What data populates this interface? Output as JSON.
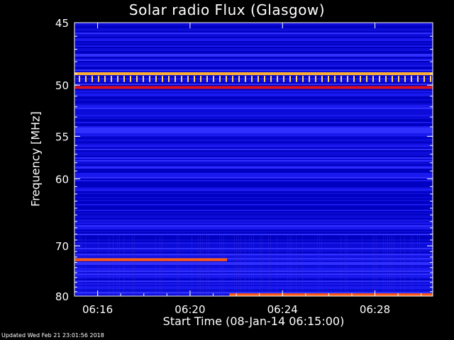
{
  "chart_data": {
    "type": "heatmap",
    "title": "Solar radio Flux (Glasgow)",
    "xlabel": "Start Time (08-Jan-14 06:15:00)",
    "ylabel": "Frequency [MHz]",
    "x_axis": {
      "unit": "minutes after 06:15:00",
      "range": [
        0,
        15.5
      ],
      "ticks": [
        {
          "value": 1,
          "label": "06:16"
        },
        {
          "value": 5,
          "label": "06:20"
        },
        {
          "value": 9,
          "label": "06:24"
        },
        {
          "value": 13,
          "label": "06:28"
        }
      ]
    },
    "y_axis": {
      "unit": "MHz",
      "scale": "reciprocal",
      "range": [
        45,
        80
      ],
      "inverted": true,
      "ticks": [
        45,
        50,
        55,
        60,
        70,
        80
      ]
    },
    "colormap": [
      "#0000c8",
      "#1e1eff",
      "#6a28e0",
      "#d01020",
      "#ff3a10",
      "#ffb030"
    ],
    "background_intensity": "low (blue)",
    "features": [
      {
        "kind": "interference_band",
        "freq_mhz": 49.0,
        "x_start": 0,
        "x_end": 15.5,
        "color": "#ffb030"
      },
      {
        "kind": "interference_band",
        "freq_mhz": 50.2,
        "x_start": 0,
        "x_end": 15.5,
        "color": "#e0101a"
      },
      {
        "kind": "interference_band",
        "freq_mhz": 72.5,
        "x_start": 0,
        "x_end": 6.6,
        "color": "#ff5a10"
      },
      {
        "kind": "interference_band",
        "freq_mhz": 79.7,
        "x_start": 6.7,
        "x_end": 15.5,
        "color": "#ff5a10"
      }
    ]
  },
  "footer": "Updated Wed Feb 21 23:01:56 2018"
}
